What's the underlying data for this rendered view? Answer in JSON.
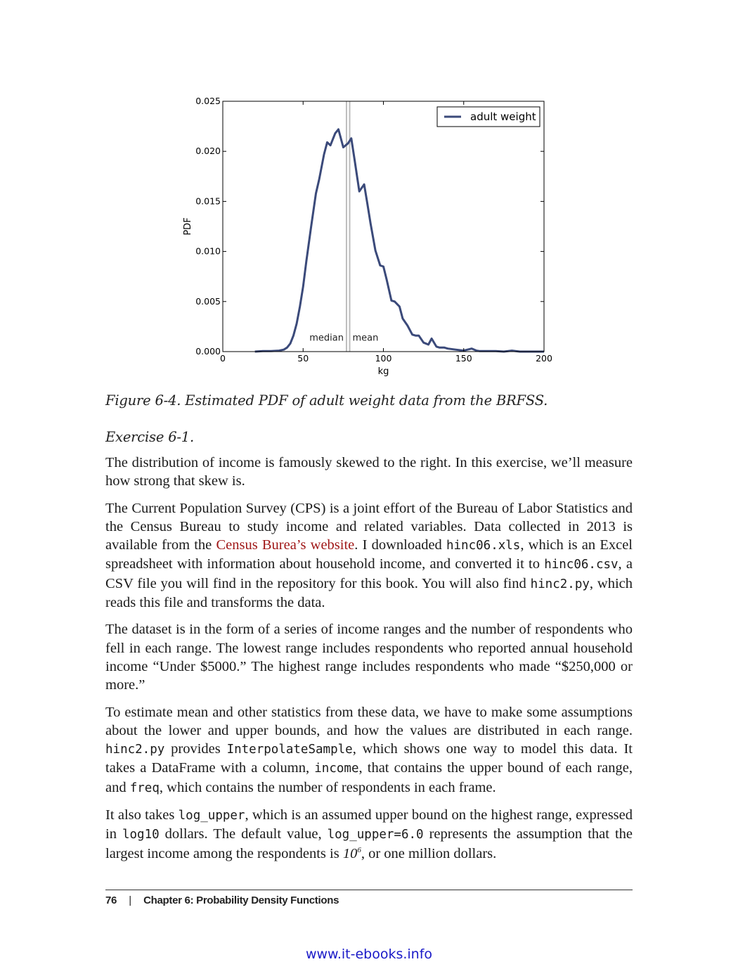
{
  "chart_data": {
    "type": "line",
    "title": "",
    "xlabel": "kg",
    "ylabel": "PDF",
    "xlim": [
      0,
      200
    ],
    "ylim": [
      0,
      0.025
    ],
    "xticks": [
      0,
      50,
      100,
      150,
      200
    ],
    "xtick_labels": [
      "0",
      "50",
      "100",
      "150",
      "200"
    ],
    "yticks": [
      0,
      0.005,
      0.01,
      0.015,
      0.02,
      0.025
    ],
    "ytick_labels": [
      "0.000",
      "0.005",
      "0.010",
      "0.015",
      "0.020",
      "0.025"
    ],
    "legend": {
      "position": "top-right",
      "entries": [
        "adult weight"
      ]
    },
    "series": [
      {
        "name": "adult weight",
        "color": "#3b4a7a",
        "x": [
          20,
          25,
          30,
          35,
          38,
          40,
          42,
          44,
          46,
          48,
          50,
          52,
          55,
          58,
          60,
          63,
          65,
          67,
          70,
          72,
          75,
          78,
          80,
          82,
          85,
          88,
          90,
          92,
          95,
          98,
          100,
          102,
          105,
          107,
          110,
          112,
          115,
          118,
          120,
          122,
          125,
          128,
          130,
          133,
          135,
          138,
          140,
          145,
          150,
          155,
          158,
          160,
          165,
          170,
          175,
          180,
          185,
          190,
          195,
          200
        ],
        "values": [
          0.0,
          5e-05,
          5e-05,
          0.0001,
          0.0002,
          0.0004,
          0.0008,
          0.0016,
          0.0028,
          0.0045,
          0.0065,
          0.009,
          0.0125,
          0.0158,
          0.0172,
          0.0197,
          0.0209,
          0.0206,
          0.0218,
          0.0222,
          0.0204,
          0.0208,
          0.0213,
          0.0192,
          0.016,
          0.0167,
          0.0148,
          0.0128,
          0.0101,
          0.0086,
          0.0085,
          0.0072,
          0.0051,
          0.005,
          0.0045,
          0.0033,
          0.0026,
          0.0017,
          0.0016,
          0.0016,
          0.0009,
          0.0007,
          0.0013,
          0.0005,
          0.0004,
          0.0004,
          0.0003,
          0.0002,
          0.0001,
          0.0003,
          0.0001,
          5e-05,
          5e-05,
          5e-05,
          0.0,
          0.0001,
          0.0,
          0.0,
          0.0,
          0.0
        ]
      }
    ],
    "vlines": [
      {
        "x": 77,
        "label": "median"
      },
      {
        "x": 79,
        "label": "mean"
      }
    ]
  },
  "caption": "Figure 6-4. Estimated PDF of adult weight data from the BRFSS.",
  "exercise": "Exercise 6-1.",
  "paragraphs": {
    "p1": "The distribution of income is famously skewed to the right. In this exercise, we’ll measure how strong that skew is.",
    "p2": {
      "t1": "The Current Population Survey (CPS) is a joint effort of the Bureau of Labor Statistics and the Census Bureau to study income and related variables. Data collected in 2013 is available from the ",
      "link": "Census Burea’s website",
      "t2": ". I downloaded ",
      "c1": "hinc06.xls",
      "t3": ", which is an Excel spreadsheet with information about household income, and converted it to ",
      "c2": "hinc06.csv",
      "t4": ", a CSV file you will find in the repository for this book. You will also find ",
      "c3": "hinc2.py",
      "t5": ", which reads this file and transforms the data."
    },
    "p3": "The dataset is in the form of a series of income ranges and the number of respondents who fell in each range. The lowest range includes respondents who reported annual household income “Under $5000.” The highest range includes respondents who made “$250,000 or more.”",
    "p4": {
      "t1": "To estimate mean and other statistics from these data, we have to make some assumptions about the lower and upper bounds, and how the values are distributed in each range. ",
      "c1": "hinc2.py",
      "t2": " provides ",
      "c2": "InterpolateSample",
      "t3": ", which shows one way to model this data. It takes a DataFrame with a column, ",
      "c3": "income",
      "t4": ", that contains the upper bound of each range, and ",
      "c4": "freq",
      "t5": ", which contains the number of respondents in each frame."
    },
    "p5": {
      "t1": "It also takes ",
      "c1": "log_upper",
      "t2": ", which is an assumed upper bound on the highest range, expressed in ",
      "c2": "log10",
      "t3": " dollars. The default value, ",
      "c3": "log_upper=6.0",
      "t4": " represents the assumption that the largest income among the respondents is ",
      "math_base": "10",
      "math_exp": "6",
      "t5": ", or one million dollars."
    }
  },
  "footer": {
    "page_number": "76",
    "separator": "|",
    "chapter": "Chapter 6: Probability Density Functions"
  },
  "watermark": "www.it-ebooks.info"
}
